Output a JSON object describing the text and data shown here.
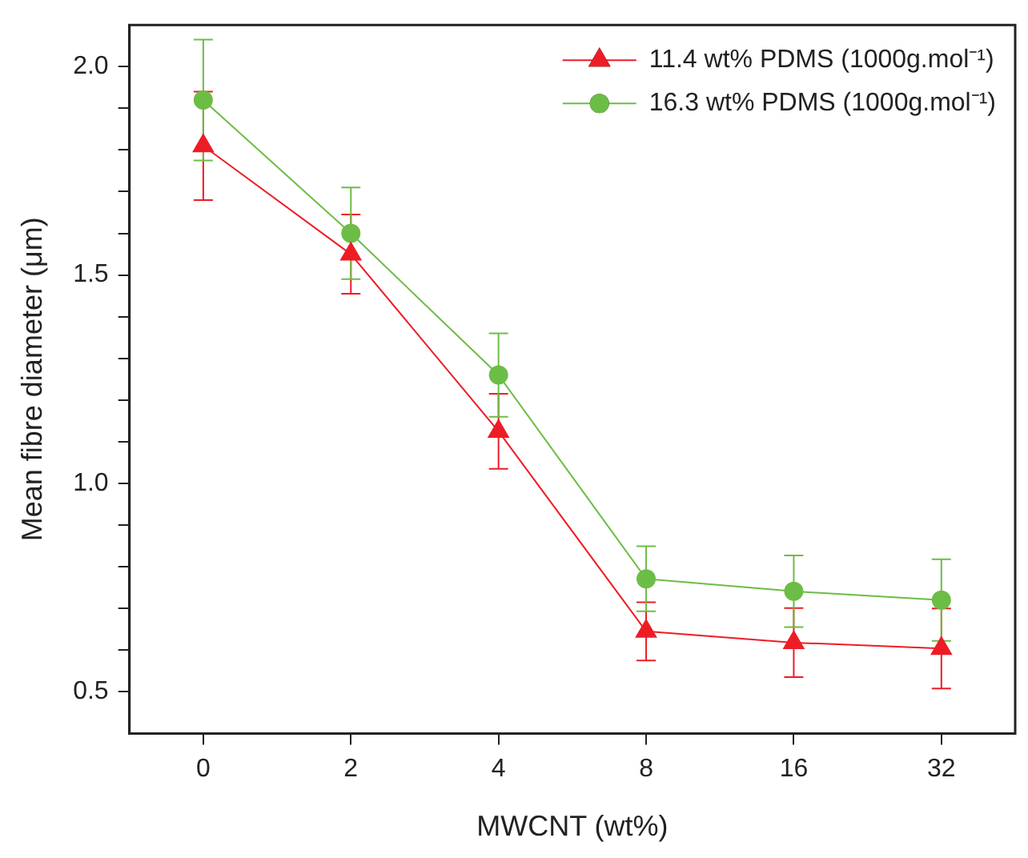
{
  "chart_data": {
    "type": "line",
    "xlabel": "MWCNT (wt%)",
    "ylabel": "Mean fibre diameter (μm)",
    "categories": [
      "0",
      "2",
      "4",
      "8",
      "16",
      "32"
    ],
    "series": [
      {
        "name": "11.4 wt% PDMS (1000g.mol⁻¹)",
        "color": "#ee1c25",
        "marker": "triangle",
        "values": [
          1.81,
          1.55,
          1.125,
          0.645,
          0.618,
          0.604
        ],
        "errors": [
          0.13,
          0.095,
          0.09,
          0.07,
          0.083,
          0.096
        ]
      },
      {
        "name": "16.3 wt% PDMS (1000g.mol⁻¹)",
        "color": "#6cbd45",
        "marker": "circle",
        "values": [
          1.92,
          1.6,
          1.26,
          0.771,
          0.741,
          0.72
        ],
        "errors": [
          0.145,
          0.11,
          0.1,
          0.078,
          0.086,
          0.098
        ]
      }
    ],
    "ylim": [
      0.4,
      2.1
    ],
    "yticks": [
      {
        "value": 0.5,
        "label": "0.5"
      },
      {
        "value": 0.6,
        "label": null
      },
      {
        "value": 0.7,
        "label": null
      },
      {
        "value": 0.8,
        "label": null
      },
      {
        "value": 0.9,
        "label": null
      },
      {
        "value": 1,
        "label": "1.0"
      },
      {
        "value": 1.1,
        "label": null
      },
      {
        "value": 1.2,
        "label": null
      },
      {
        "value": 1.3,
        "label": null
      },
      {
        "value": 1.4,
        "label": null
      },
      {
        "value": 1.5,
        "label": "1.5"
      },
      {
        "value": 1.6,
        "label": null
      },
      {
        "value": 1.7,
        "label": null
      },
      {
        "value": 1.8,
        "label": null
      },
      {
        "value": 1.9,
        "label": null
      },
      {
        "value": 2,
        "label": "2.0"
      }
    ],
    "grid": false,
    "legend": "top right",
    "line_style": "solid"
  }
}
